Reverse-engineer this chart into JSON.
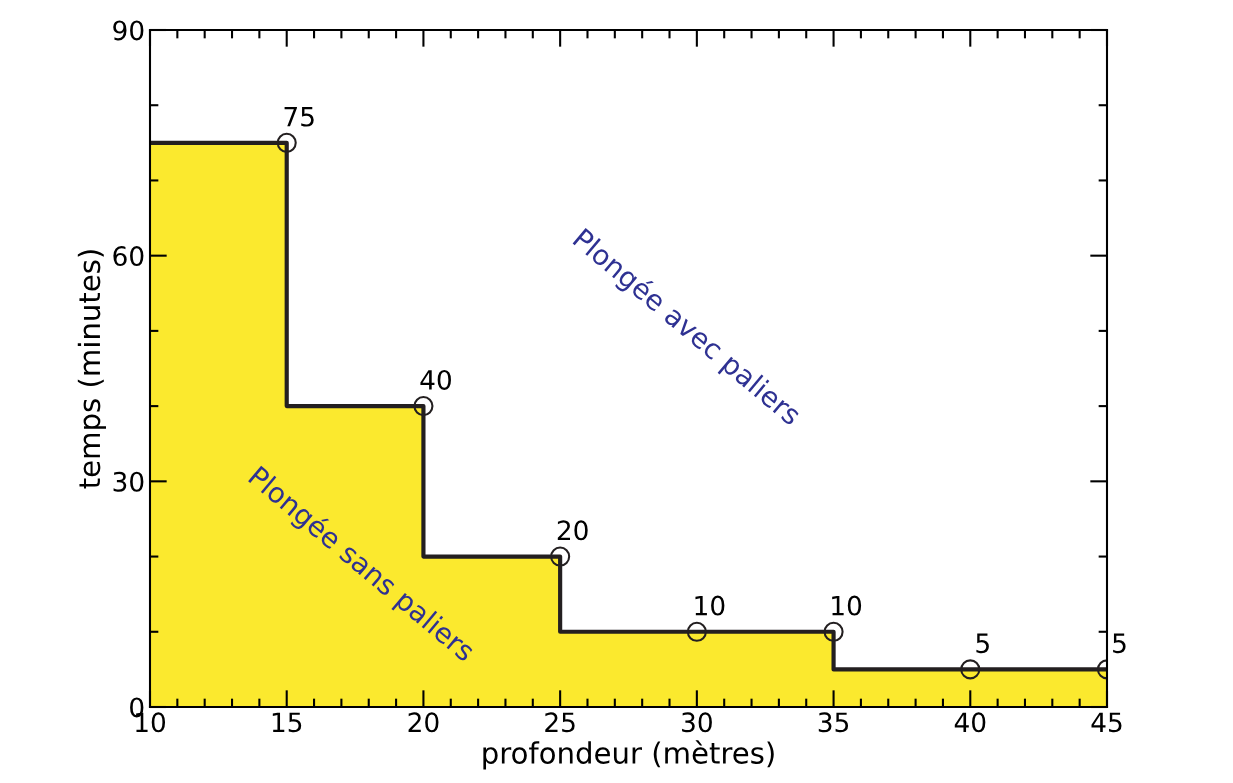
{
  "chart_data": {
    "type": "step",
    "xlabel": "profondeur (mètres)",
    "ylabel": "temps (minutes)",
    "series": [
      {
        "type": "area",
        "color": "#fbe92e",
        "x": [
          10,
          15,
          20,
          25,
          30,
          35,
          40,
          45
        ],
        "values": [
          75,
          75,
          40,
          20,
          10,
          10,
          5,
          5
        ]
      },
      {
        "color": "#231f20",
        "x": [
          10,
          15,
          20,
          25,
          30,
          35,
          40,
          45
        ],
        "values": [
          75,
          75,
          40,
          20,
          10,
          10,
          5,
          5
        ]
      },
      {
        "type": "scatter",
        "color": "#231f20",
        "x": [
          15,
          20,
          25,
          30,
          35,
          40,
          45
        ],
        "values": [
          75,
          40,
          20,
          10,
          10,
          5,
          5
        ],
        "marker": "circle",
        "value_labels": [
          "75",
          "40",
          "20",
          "10",
          "10",
          "5",
          "5"
        ]
      }
    ],
    "line_style": "solid",
    "xlim": [
      10,
      45
    ],
    "xticks": [
      10,
      15,
      20,
      25,
      30,
      35,
      40,
      45
    ],
    "ylim": [
      0,
      90
    ],
    "yticks": [
      0,
      30,
      60,
      90
    ],
    "annotations": [
      "Plongée sans paliers",
      "Plongée avec paliers"
    ]
  }
}
